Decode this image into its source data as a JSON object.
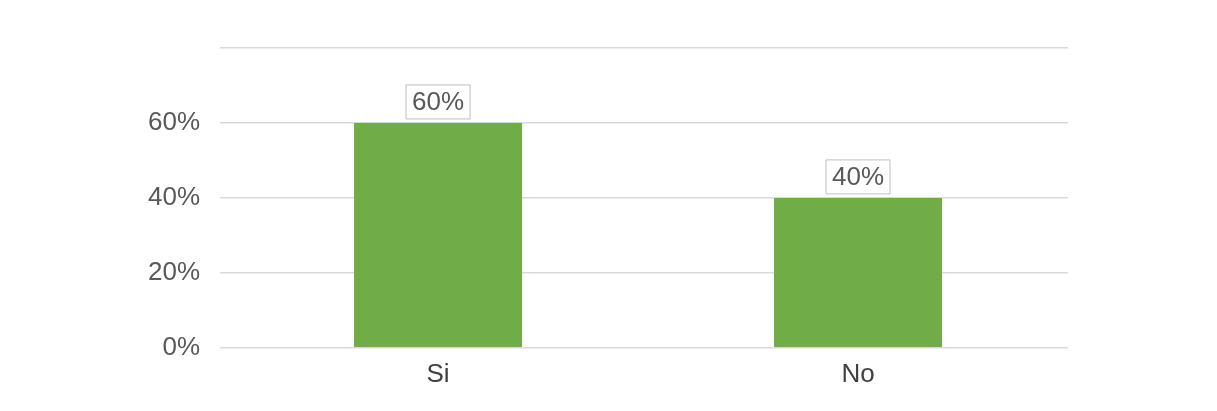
{
  "chart_data": {
    "type": "bar",
    "categories": [
      "Si",
      "No"
    ],
    "values": [
      60,
      40
    ],
    "value_labels": [
      "60%",
      "40%"
    ],
    "color": "#70ad47",
    "ylim": [
      0,
      80
    ],
    "yticks": [
      {
        "value": 0,
        "label": "0%"
      },
      {
        "value": 20,
        "label": "20%"
      },
      {
        "value": 40,
        "label": "40%"
      },
      {
        "value": 60,
        "label": "60%"
      },
      {
        "value": 80,
        "label": null
      }
    ],
    "grid": "y",
    "legend": false
  }
}
